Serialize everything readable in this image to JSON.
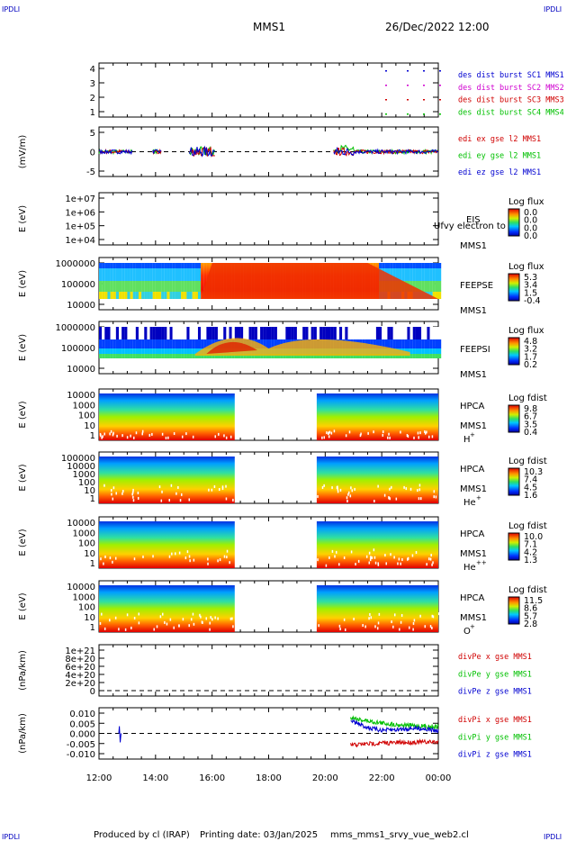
{
  "header": {
    "corner_left_top": "IPDLI",
    "corner_right_top": "IPDLI",
    "corner_left_bottom": "IPDLI",
    "corner_right_bottom": "IPDLI",
    "spacecraft": "MMS1",
    "datetime": "26/Dec/2022 12:00"
  },
  "footer": {
    "produced_by": "Produced by cl (IRAP)",
    "printing_date": "Printing date: 03/Jan/2025",
    "script": "mms_mms1_srvy_vue_web2.cl"
  },
  "colors": {
    "blue": "#0000d0",
    "magenta": "#d000d0",
    "red": "#d00000",
    "green": "#00c000"
  },
  "chart_data": [
    {
      "id": "burst",
      "type": "scatter",
      "y_ticks": [
        "4",
        "3",
        "2",
        "1"
      ],
      "legend": [
        {
          "label": "des dist burst SC1 MMS1",
          "color": "#0000d0"
        },
        {
          "label": "des dist burst SC2 MMS2",
          "color": "#d000d0"
        },
        {
          "label": "des dist burst SC3 MMS3",
          "color": "#d00000"
        },
        {
          "label": "des dist burst SC4 MMS4",
          "color": "#00c000"
        }
      ],
      "x": [
        "22:00",
        "22:20",
        "23:00",
        "23:40"
      ]
    },
    {
      "id": "efield",
      "type": "line",
      "ylabel": "(mV/m)",
      "y_ticks": [
        "5",
        "0",
        "-5"
      ],
      "ylim": [
        -7,
        7
      ],
      "legend": [
        {
          "label": "edi ex gse l2 MMS1",
          "color": "#d00000"
        },
        {
          "label": "edi ey gse l2 MMS1",
          "color": "#00c000"
        },
        {
          "label": "edi ez gse l2 MMS1",
          "color": "#0000d0"
        }
      ]
    },
    {
      "id": "eis",
      "type": "heatmap",
      "ylabel": "E (eV)",
      "y_ticks": [
        "1e+07",
        "1e+06",
        "1e+05",
        "1e+04"
      ],
      "instrument": "EIS",
      "instrument2": "MMS1",
      "overlay_text": "Ufvy electron to",
      "colorbar_title": "Log flux",
      "colorbar_ticks": [
        "0.0",
        "0.0",
        "0.0",
        "0.0"
      ]
    },
    {
      "id": "feepse",
      "type": "heatmap",
      "ylabel": "E (eV)",
      "y_ticks": [
        "1000000",
        "100000",
        "10000"
      ],
      "instrument": "FEEPSE",
      "instrument2": "MMS1",
      "colorbar_title": "Log flux",
      "colorbar_ticks": [
        "5.3",
        "3.4",
        "1.5",
        "-0.4"
      ]
    },
    {
      "id": "feepsi",
      "type": "heatmap",
      "ylabel": "E (eV)",
      "y_ticks": [
        "1000000",
        "100000",
        "10000"
      ],
      "instrument": "FEEPSI",
      "instrument2": "MMS1",
      "colorbar_title": "Log flux",
      "colorbar_ticks": [
        "4.8",
        "3.2",
        "1.7",
        "0.2"
      ]
    },
    {
      "id": "hpca_h",
      "type": "heatmap",
      "ylabel": "E (eV)",
      "y_ticks": [
        "10000",
        "1000",
        "100",
        "10",
        "1"
      ],
      "instrument": "HPCA",
      "instrument2": "MMS1",
      "species": "H",
      "charge": "+",
      "colorbar_title": "Log fdist",
      "colorbar_ticks": [
        "9.8",
        "6.7",
        "3.5",
        "0.4"
      ]
    },
    {
      "id": "hpca_he",
      "type": "heatmap",
      "ylabel": "E (eV)",
      "y_ticks": [
        "100000",
        "10000",
        "1000",
        "100",
        "10",
        "1"
      ],
      "instrument": "HPCA",
      "instrument2": "MMS1",
      "species": "He",
      "charge": "+",
      "colorbar_title": "Log fdist",
      "colorbar_ticks": [
        "10.3",
        "7.4",
        "4.5",
        "1.6"
      ]
    },
    {
      "id": "hpca_hepp",
      "type": "heatmap",
      "ylabel": "E (eV)",
      "y_ticks": [
        "10000",
        "1000",
        "100",
        "10",
        "1"
      ],
      "instrument": "HPCA",
      "instrument2": "MMS1",
      "species": "He",
      "charge": "++",
      "colorbar_title": "Log fdist",
      "colorbar_ticks": [
        "10.0",
        "7.1",
        "4.2",
        "1.3"
      ]
    },
    {
      "id": "hpca_o",
      "type": "heatmap",
      "ylabel": "E (eV)",
      "y_ticks": [
        "10000",
        "1000",
        "100",
        "10",
        "1"
      ],
      "instrument": "HPCA",
      "instrument2": "MMS1",
      "species": "O",
      "charge": "+",
      "colorbar_title": "Log fdist",
      "colorbar_ticks": [
        "11.5",
        "8.6",
        "5.7",
        "2.8"
      ]
    },
    {
      "id": "divpe",
      "type": "line",
      "ylabel": "(nPa/km)",
      "y_ticks": [
        "1e+21",
        "8e+20",
        "6e+20",
        "4e+20",
        "2e+20",
        "0"
      ],
      "legend": [
        {
          "label": "divPe x gse MMS1",
          "color": "#d00000"
        },
        {
          "label": "divPe y gse MMS1",
          "color": "#00c000"
        },
        {
          "label": "divPe z gse MMS1",
          "color": "#0000d0"
        }
      ]
    },
    {
      "id": "divpi",
      "type": "line",
      "ylabel": "(nPa/km)",
      "y_ticks": [
        "0.010",
        "0.005",
        "0.000",
        "-0.005",
        "-0.010"
      ],
      "ylim": [
        -0.013,
        0.013
      ],
      "legend": [
        {
          "label": "divPi x gse MMS1",
          "color": "#d00000"
        },
        {
          "label": "divPi y gse MMS1",
          "color": "#00c000"
        },
        {
          "label": "divPi z gse MMS1",
          "color": "#0000d0"
        }
      ]
    }
  ],
  "x_axis": {
    "ticks": [
      "12:00",
      "14:00",
      "16:00",
      "18:00",
      "20:00",
      "22:00",
      "00:00"
    ]
  }
}
